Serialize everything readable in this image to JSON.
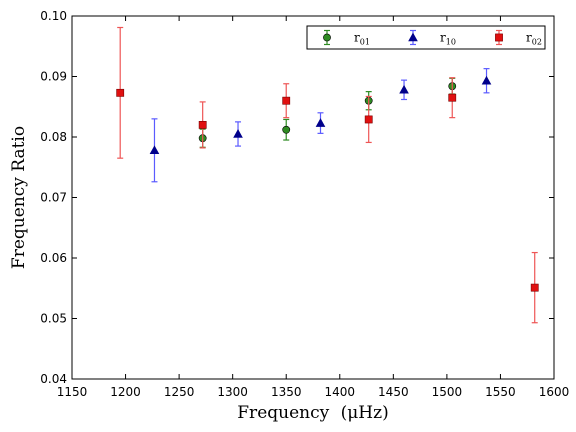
{
  "chart_data": {
    "type": "scatter",
    "xlabel": "Frequency",
    "xlabel_unit": "(μHz)",
    "ylabel": "Frequency Ratio",
    "xlim": [
      1150,
      1600
    ],
    "ylim": [
      0.04,
      0.1
    ],
    "x_ticks": [
      "1150",
      "1200",
      "1250",
      "1300",
      "1350",
      "1400",
      "1450",
      "1500",
      "1550",
      "1600"
    ],
    "y_ticks": [
      "0.04",
      "0.05",
      "0.06",
      "0.07",
      "0.08",
      "0.09",
      "0.10"
    ],
    "legend_position": "top-right",
    "series": [
      {
        "name": "r01",
        "name_base": "r",
        "name_sub": "01",
        "marker": "circle",
        "color": "#2e8b22",
        "error_color": "#2e8b22",
        "points": [
          {
            "x": 1272,
            "y": 0.0798,
            "err": 0.0015
          },
          {
            "x": 1350,
            "y": 0.0812,
            "err": 0.0017
          },
          {
            "x": 1427,
            "y": 0.086,
            "err": 0.0015
          },
          {
            "x": 1505,
            "y": 0.0884,
            "err": 0.0013
          }
        ]
      },
      {
        "name": "r10",
        "name_base": "r",
        "name_sub": "10",
        "marker": "triangle",
        "color": "#00008b",
        "error_color": "#5b5bff",
        "points": [
          {
            "x": 1227,
            "y": 0.0778,
            "err": 0.0052
          },
          {
            "x": 1305,
            "y": 0.0805,
            "err": 0.002
          },
          {
            "x": 1382,
            "y": 0.0823,
            "err": 0.0017
          },
          {
            "x": 1460,
            "y": 0.0878,
            "err": 0.0016
          },
          {
            "x": 1537,
            "y": 0.0893,
            "err": 0.002
          }
        ]
      },
      {
        "name": "r02",
        "name_base": "r",
        "name_sub": "02",
        "marker": "square",
        "color": "#e01010",
        "error_color": "#ee5555",
        "points": [
          {
            "x": 1195,
            "y": 0.0873,
            "err": 0.0108
          },
          {
            "x": 1272,
            "y": 0.082,
            "err": 0.0038
          },
          {
            "x": 1350,
            "y": 0.086,
            "err": 0.0028
          },
          {
            "x": 1427,
            "y": 0.0829,
            "err": 0.0038
          },
          {
            "x": 1505,
            "y": 0.0865,
            "err": 0.0033
          },
          {
            "x": 1582,
            "y": 0.0551,
            "err": 0.0058
          }
        ]
      }
    ]
  }
}
